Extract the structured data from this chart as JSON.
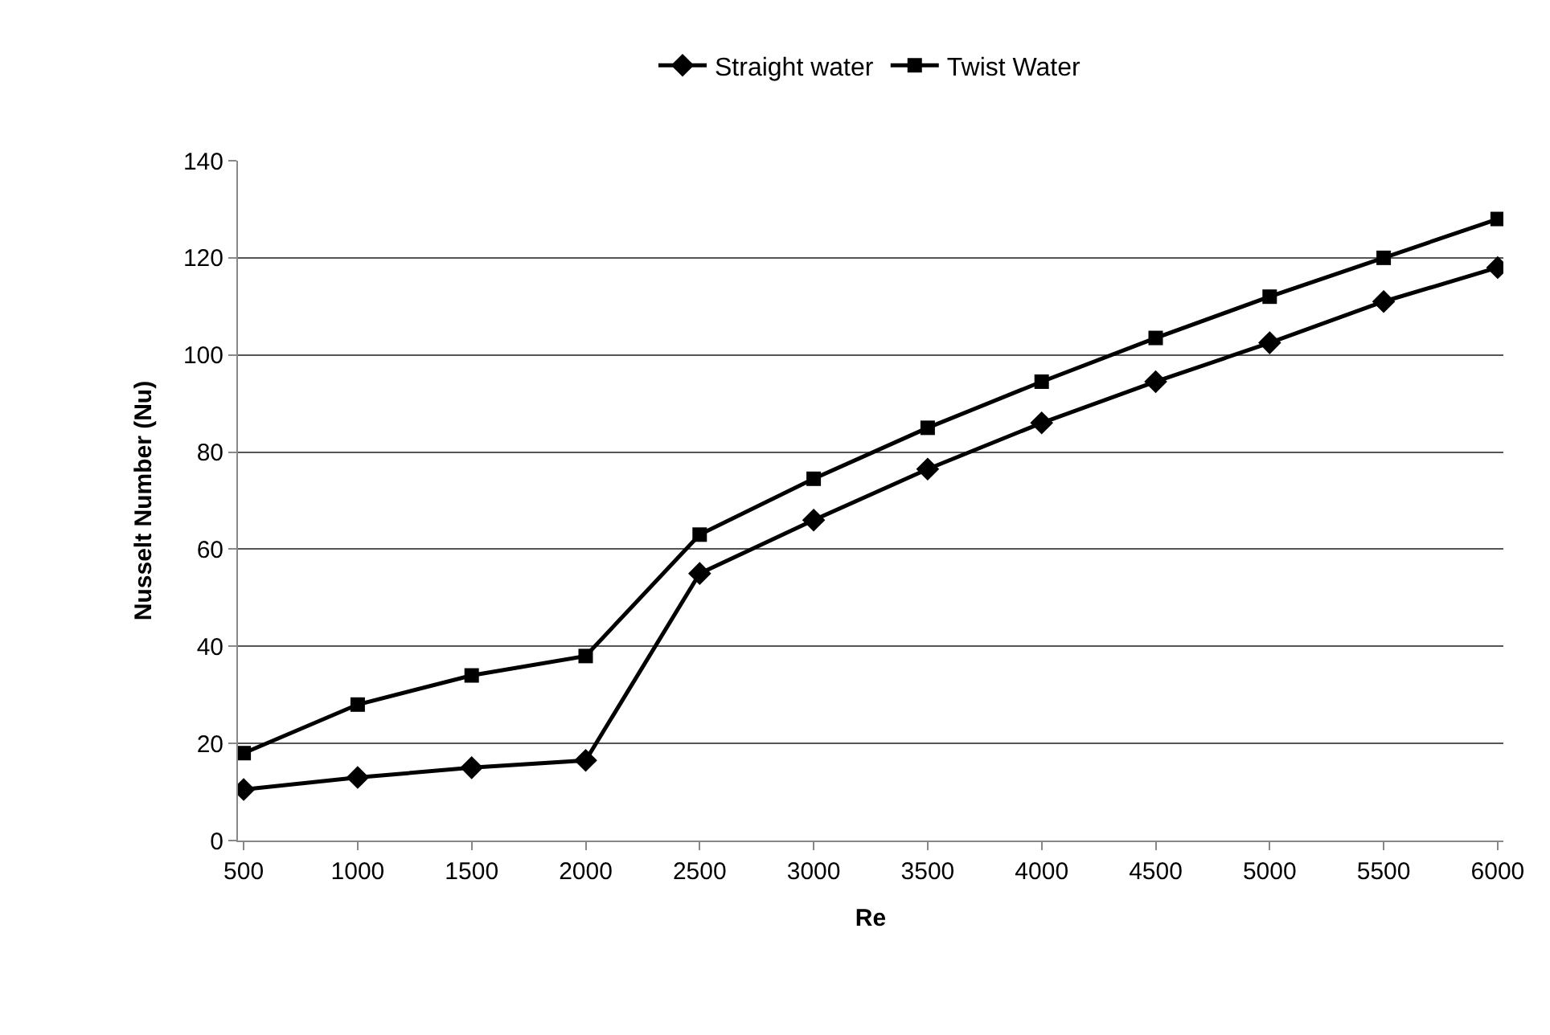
{
  "chart_data": {
    "type": "line",
    "xlabel": "Re",
    "ylabel": "Nusselt Number (Nu)",
    "categories": [
      "500",
      "1000",
      "1500",
      "2000",
      "2500",
      "3000",
      "3500",
      "4000",
      "4500",
      "5000",
      "5500",
      "6000"
    ],
    "series": [
      {
        "name": "Straight water",
        "color": "#000000",
        "marker": "diamond",
        "values": [
          10.5,
          13,
          15,
          16.5,
          55,
          66,
          76.5,
          86,
          94.5,
          102.5,
          111,
          118
        ]
      },
      {
        "name": "Twist Water",
        "color": "#000000",
        "marker": "square",
        "values": [
          18,
          28,
          34,
          38,
          63,
          74.5,
          85,
          94.5,
          103.5,
          112,
          120,
          128
        ]
      }
    ],
    "ylim": [
      0,
      140
    ],
    "yticks": [
      0,
      20,
      40,
      60,
      80,
      100,
      120,
      140
    ],
    "grid": "y",
    "legend": "top",
    "line_style": "solid"
  }
}
